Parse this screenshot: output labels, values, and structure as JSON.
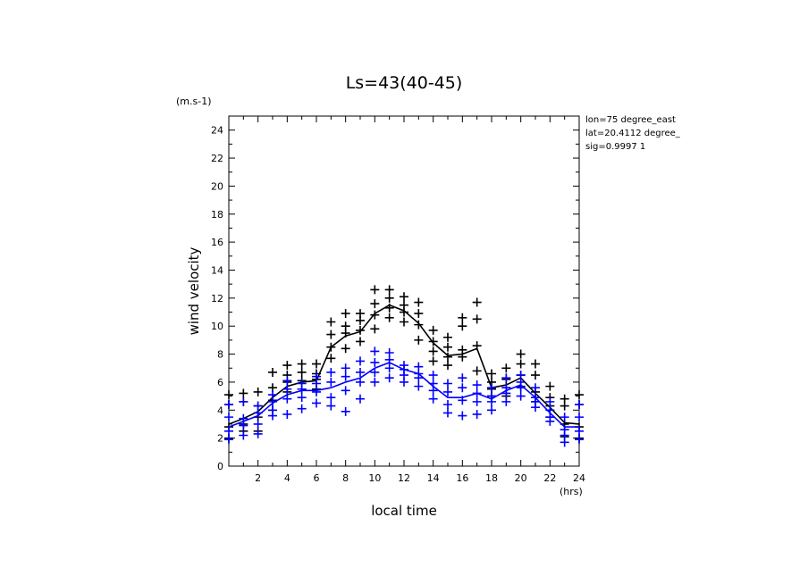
{
  "chart_data": {
    "type": "scatter",
    "title": "Ls=43(40-45)",
    "xlabel": "local time",
    "xunit": "(hrs)",
    "ylabel": "wind velocity",
    "yunit": "(m.s-1)",
    "xlim": [
      0,
      24
    ],
    "ylim": [
      0,
      25
    ],
    "xticks": [
      "2",
      "4",
      "6",
      "8",
      "10",
      "12",
      "14",
      "16",
      "18",
      "20",
      "22",
      "24"
    ],
    "yticks": [
      "0",
      "2",
      "4",
      "6",
      "8",
      "10",
      "12",
      "14",
      "16",
      "18",
      "20",
      "22",
      "24"
    ],
    "info": [
      "lon=75 degree_east",
      "lat=20.4112 degree_",
      "sig=0.9997 1"
    ],
    "grid": false,
    "series": [
      {
        "color": "#000000",
        "mean_line": {
          "x": [
            0,
            1,
            2,
            3,
            4,
            5,
            6,
            7,
            8,
            9,
            10,
            11,
            12,
            13,
            14,
            15,
            16,
            17,
            18,
            19,
            20,
            21,
            22,
            23,
            24
          ],
          "y": [
            3.0,
            3.4,
            3.9,
            4.9,
            5.7,
            6.0,
            6.1,
            8.5,
            9.3,
            9.6,
            10.9,
            11.5,
            11.1,
            10.2,
            8.8,
            7.9,
            8.0,
            8.4,
            5.6,
            5.8,
            6.3,
            5.2,
            4.2,
            3.1,
            3.0
          ]
        },
        "points": {
          "x": [
            0,
            0,
            0,
            0,
            1,
            1,
            1,
            1,
            2,
            2,
            2,
            2,
            3,
            3,
            3,
            3,
            4,
            4,
            4,
            4,
            5,
            5,
            5,
            5,
            6,
            6,
            6,
            6,
            7,
            7,
            7,
            7,
            8,
            8,
            8,
            8,
            9,
            9,
            9,
            9,
            10,
            10,
            10,
            10,
            11,
            11,
            11,
            11,
            12,
            12,
            12,
            12,
            13,
            13,
            13,
            13,
            14,
            14,
            14,
            14,
            15,
            15,
            15,
            15,
            16,
            16,
            16,
            16,
            17,
            17,
            17,
            17,
            18,
            18,
            18,
            18,
            19,
            19,
            19,
            19,
            20,
            20,
            20,
            20,
            21,
            21,
            21,
            21,
            22,
            22,
            22,
            22,
            23,
            23,
            23,
            23,
            24,
            24,
            24,
            24
          ],
          "y": [
            5.1,
            4.4,
            2.8,
            2.0,
            5.2,
            4.6,
            3.0,
            2.5,
            5.3,
            4.3,
            3.5,
            2.5,
            6.7,
            5.6,
            4.7,
            4.0,
            7.2,
            6.5,
            6.0,
            5.3,
            7.3,
            6.7,
            6.1,
            5.5,
            7.3,
            6.6,
            6.2,
            5.5,
            10.3,
            9.4,
            8.5,
            7.7,
            10.9,
            10.0,
            9.5,
            8.4,
            10.9,
            10.4,
            9.7,
            8.9,
            12.6,
            11.6,
            10.8,
            9.8,
            12.6,
            12.0,
            11.3,
            10.6,
            12.1,
            11.5,
            11.0,
            10.3,
            11.7,
            10.9,
            10.1,
            9.0,
            9.7,
            8.9,
            8.2,
            7.5,
            9.2,
            8.5,
            7.8,
            7.2,
            10.6,
            10.0,
            8.3,
            7.8,
            11.7,
            10.5,
            8.6,
            6.8,
            6.6,
            6.0,
            5.5,
            5.0,
            7.0,
            6.2,
            5.6,
            5.0,
            8.0,
            7.3,
            6.5,
            5.7,
            7.3,
            6.5,
            5.3,
            4.6,
            5.7,
            4.9,
            4.3,
            3.5,
            4.8,
            4.3,
            3.0,
            2.1,
            5.1,
            4.4,
            2.8,
            2.0
          ]
        }
      },
      {
        "color": "#0000ff",
        "mean_line": {
          "x": [
            0,
            1,
            2,
            3,
            4,
            5,
            6,
            7,
            8,
            9,
            10,
            11,
            12,
            13,
            14,
            15,
            16,
            17,
            18,
            19,
            20,
            21,
            22,
            23,
            24
          ],
          "y": [
            2.8,
            3.2,
            3.6,
            4.5,
            5.1,
            5.4,
            5.4,
            5.6,
            6.0,
            6.3,
            7.0,
            7.4,
            6.9,
            6.6,
            5.7,
            4.9,
            4.9,
            5.2,
            4.8,
            5.4,
            5.8,
            4.9,
            3.8,
            2.8,
            2.8
          ]
        },
        "points": {
          "x": [
            0,
            0,
            0,
            0,
            1,
            1,
            1,
            1,
            2,
            2,
            2,
            2,
            3,
            3,
            3,
            3,
            4,
            4,
            4,
            4,
            5,
            5,
            5,
            5,
            6,
            6,
            6,
            6,
            7,
            7,
            7,
            7,
            8,
            8,
            8,
            8,
            9,
            9,
            9,
            9,
            10,
            10,
            10,
            10,
            11,
            11,
            11,
            11,
            12,
            12,
            12,
            12,
            13,
            13,
            13,
            13,
            14,
            14,
            14,
            14,
            15,
            15,
            15,
            15,
            16,
            16,
            16,
            16,
            17,
            17,
            17,
            17,
            18,
            18,
            18,
            18,
            19,
            19,
            19,
            19,
            20,
            20,
            20,
            20,
            21,
            21,
            21,
            21,
            22,
            22,
            22,
            22,
            23,
            23,
            23,
            23,
            24,
            24,
            24,
            24
          ],
          "y": [
            4.4,
            3.5,
            2.5,
            1.9,
            4.6,
            3.4,
            2.9,
            2.2,
            4.3,
            3.8,
            3.0,
            2.3,
            5.1,
            4.6,
            4.0,
            3.6,
            6.1,
            5.5,
            4.8,
            3.7,
            5.9,
            5.5,
            4.9,
            4.1,
            6.4,
            5.9,
            5.3,
            4.5,
            6.7,
            6.0,
            4.9,
            4.3,
            7.0,
            6.4,
            5.4,
            3.9,
            7.5,
            6.7,
            6.0,
            4.8,
            8.2,
            7.4,
            6.7,
            6.0,
            8.1,
            7.6,
            7.0,
            6.3,
            7.2,
            6.9,
            6.5,
            6.0,
            7.1,
            6.6,
            6.3,
            5.7,
            6.5,
            5.9,
            5.4,
            4.8,
            5.9,
            5.3,
            4.4,
            3.8,
            6.3,
            5.6,
            4.7,
            3.6,
            5.8,
            5.2,
            4.6,
            3.7,
            5.6,
            5.0,
            4.6,
            4.0,
            6.3,
            5.6,
            5.2,
            4.6,
            6.5,
            6.0,
            5.6,
            5.0,
            5.6,
            4.9,
            4.6,
            4.2,
            4.6,
            4.0,
            3.5,
            3.2,
            3.5,
            2.6,
            2.2,
            1.7,
            4.4,
            3.5,
            2.5,
            1.9
          ]
        }
      }
    ]
  }
}
